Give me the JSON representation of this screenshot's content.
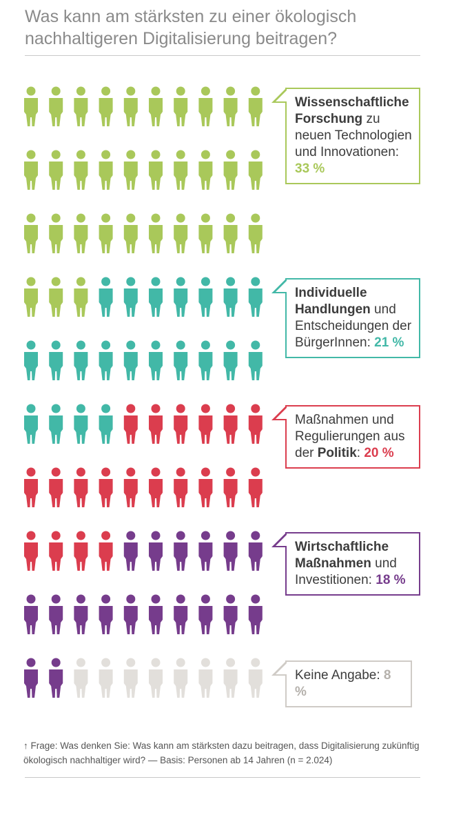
{
  "title": "Was kann am stärksten zu einer ökologisch nachhaltigeren Digitalisierung beitragen?",
  "colors": {
    "science": "#a9c85a",
    "individual": "#42b8a7",
    "politics": "#db3d4e",
    "economy": "#763c8c",
    "none": "#e2dfdb"
  },
  "chart_data": {
    "type": "pictogram",
    "unit": "1 figure = 1 %",
    "total": 100,
    "per_row": 10,
    "categories": [
      {
        "key": "science",
        "value": 33,
        "color": "#a9c85a"
      },
      {
        "key": "individual",
        "value": 21,
        "color": "#42b8a7"
      },
      {
        "key": "politics",
        "value": 20,
        "color": "#db3d4e"
      },
      {
        "key": "economy",
        "value": 18,
        "color": "#763c8c"
      },
      {
        "key": "none",
        "value": 8,
        "color": "#e2dfdb"
      }
    ]
  },
  "callouts": {
    "science": {
      "bold": "Wissenschaftliche Forschung",
      "rest": " zu neuen Technologien und Innovationen: ",
      "pct": "33 %"
    },
    "individual": {
      "bold": "Individuelle Handlungen",
      "rest": " und Entscheidungen der BürgerInnen: ",
      "pct": "21 %"
    },
    "politics": {
      "pre": "Maßnahmen und Regulierungen aus der ",
      "bold": "Politik",
      "rest": ": ",
      "pct": "20 %"
    },
    "economy": {
      "bold": "Wirtschaftliche Maßnahmen",
      "rest": " und Investitionen: ",
      "pct": "18 %"
    },
    "none": {
      "rest": "Keine Angabe: ",
      "pct": "8 %"
    }
  },
  "footnote": "↑ Frage: Was denken Sie: Was kann am stärksten dazu beitragen, dass Digitalisierung zukünftig ökologisch nachhaltiger wird? — Basis: Personen ab 14 Jahren (n = 2.024)"
}
